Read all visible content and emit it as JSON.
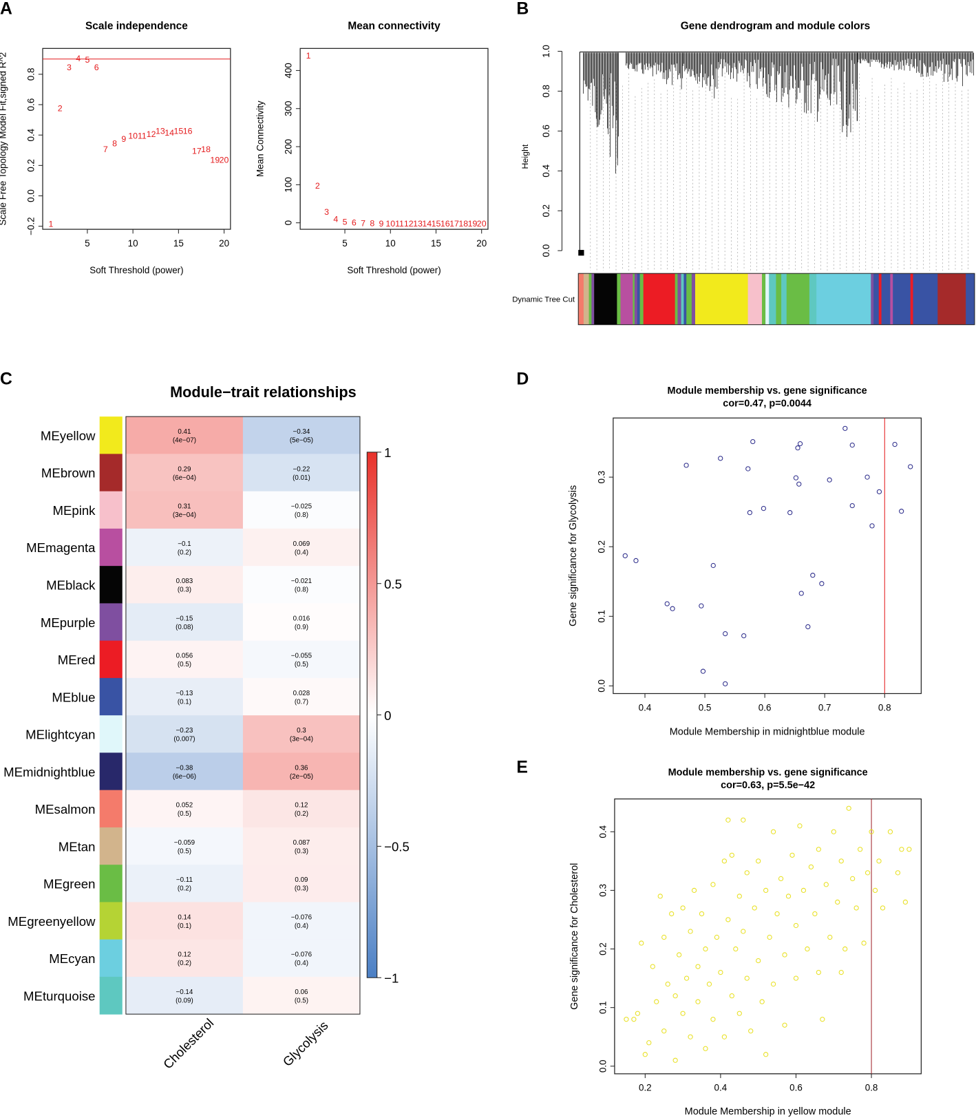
{
  "panel_labels": [
    "A",
    "B",
    "C",
    "D",
    "E"
  ],
  "chart_data": [
    {
      "id": "scale-independence",
      "type": "scatter",
      "title": "Scale independence",
      "xlabel": "Soft Threshold (power)",
      "ylabel": "Scale Free Topology Model Fit,signed R^2",
      "xlim": [
        0.1,
        20.7
      ],
      "ylim": [
        -0.22,
        0.97
      ],
      "xticks": [
        5,
        10,
        15,
        20
      ],
      "yticks": [
        -0.2,
        0.0,
        0.2,
        0.4,
        0.6,
        0.8
      ],
      "hline": 0.9,
      "point_labels": [
        "1",
        "2",
        "3",
        "4",
        "5",
        "6",
        "7",
        "8",
        "9",
        "10",
        "11",
        "12",
        "13",
        "14",
        "15",
        "16",
        "17",
        "18",
        "19",
        "20"
      ],
      "x": [
        1,
        2,
        3,
        4,
        5,
        6,
        7,
        8,
        9,
        10,
        11,
        12,
        13,
        14,
        15,
        16,
        17,
        18,
        19,
        20
      ],
      "y": [
        -0.18,
        0.58,
        0.85,
        0.91,
        0.9,
        0.85,
        0.31,
        0.35,
        0.38,
        0.4,
        0.4,
        0.41,
        0.43,
        0.42,
        0.43,
        0.43,
        0.3,
        0.31,
        0.24,
        0.24
      ],
      "color": "#e41a1c"
    },
    {
      "id": "mean-connectivity",
      "type": "scatter",
      "title": "Mean connectivity",
      "xlabel": "Soft Threshold (power)",
      "ylabel": "Mean Connectivity",
      "xlim": [
        0.1,
        20.7
      ],
      "ylim": [
        -17,
        458
      ],
      "xticks": [
        5,
        10,
        15,
        20
      ],
      "yticks": [
        0,
        100,
        200,
        300,
        400
      ],
      "point_labels": [
        "1",
        "2",
        "3",
        "4",
        "5",
        "6",
        "7",
        "8",
        "9",
        "10",
        "11",
        "12",
        "13",
        "14",
        "15",
        "16",
        "17",
        "18",
        "19",
        "20"
      ],
      "x": [
        1,
        2,
        3,
        4,
        5,
        6,
        7,
        8,
        9,
        10,
        11,
        12,
        13,
        14,
        15,
        16,
        17,
        18,
        19,
        20
      ],
      "y": [
        441,
        99,
        30,
        11,
        4,
        2,
        1,
        1,
        0,
        0,
        0,
        0,
        0,
        0,
        0,
        0,
        0,
        0,
        0,
        0
      ],
      "color": "#e41a1c"
    },
    {
      "id": "gene-dendrogram",
      "type": "dendrogram",
      "title": "Gene dendrogram and module colors",
      "ylabel": "Height",
      "yticks": [
        0.0,
        0.2,
        0.4,
        0.6,
        0.8,
        1.0
      ],
      "colorbar_label": "Dynamic Tree Cut"
    },
    {
      "id": "module-trait",
      "type": "heatmap",
      "title": "Module−trait relationships",
      "columns": [
        "Cholesterol",
        "Glycolysis"
      ],
      "rows": [
        {
          "name": "MEyellow",
          "color": "#f2ea1c",
          "values": [
            0.41,
            -0.34
          ],
          "p": [
            "(4e−07)",
            "(5e−05)"
          ],
          "labels": [
            "0.41",
            "−0.34"
          ]
        },
        {
          "name": "MEbrown",
          "color": "#a52a2a",
          "values": [
            0.29,
            -0.22
          ],
          "p": [
            "(6e−04)",
            "(0.01)"
          ],
          "labels": [
            "0.29",
            "−0.22"
          ]
        },
        {
          "name": "MEpink",
          "color": "#f7c0cb",
          "values": [
            0.31,
            -0.025
          ],
          "p": [
            "(3e−04)",
            "(0.8)"
          ],
          "labels": [
            "0.31",
            "−0.025"
          ]
        },
        {
          "name": "MEmagenta",
          "color": "#b84fa0",
          "values": [
            -0.1,
            0.069
          ],
          "p": [
            "(0.2)",
            "(0.4)"
          ],
          "labels": [
            "−0.1",
            "0.069"
          ]
        },
        {
          "name": "MEblack",
          "color": "#050505",
          "values": [
            0.083,
            -0.021
          ],
          "p": [
            "(0.3)",
            "(0.8)"
          ],
          "labels": [
            "0.083",
            "−0.021"
          ]
        },
        {
          "name": "MEpurple",
          "color": "#7f4fa0",
          "values": [
            -0.15,
            0.016
          ],
          "p": [
            "(0.08)",
            "(0.9)"
          ],
          "labels": [
            "−0.15",
            "0.016"
          ]
        },
        {
          "name": "MEred",
          "color": "#ec1c24",
          "values": [
            0.056,
            -0.055
          ],
          "p": [
            "(0.5)",
            "(0.5)"
          ],
          "labels": [
            "0.056",
            "−0.055"
          ]
        },
        {
          "name": "MEblue",
          "color": "#3953a4",
          "values": [
            -0.13,
            0.028
          ],
          "p": [
            "(0.1)",
            "(0.7)"
          ],
          "labels": [
            "−0.13",
            "0.028"
          ]
        },
        {
          "name": "MElightcyan",
          "color": "#e0f7fa",
          "values": [
            -0.23,
            0.3
          ],
          "p": [
            "(0.007)",
            "(3e−04)"
          ],
          "labels": [
            "−0.23",
            "0.3"
          ]
        },
        {
          "name": "MEmidnightblue",
          "color": "#28286a",
          "values": [
            -0.38,
            0.36
          ],
          "p": [
            "(6e−06)",
            "(2e−05)"
          ],
          "labels": [
            "−0.38",
            "0.36"
          ]
        },
        {
          "name": "MEsalmon",
          "color": "#f47b6b",
          "values": [
            0.052,
            0.12
          ],
          "p": [
            "(0.5)",
            "(0.2)"
          ],
          "labels": [
            "0.052",
            "0.12"
          ]
        },
        {
          "name": "MEtan",
          "color": "#d2b48c",
          "values": [
            -0.059,
            0.087
          ],
          "p": [
            "(0.5)",
            "(0.3)"
          ],
          "labels": [
            "−0.059",
            "0.087"
          ]
        },
        {
          "name": "MEgreen",
          "color": "#6abd45",
          "values": [
            -0.11,
            0.09
          ],
          "p": [
            "(0.2)",
            "(0.3)"
          ],
          "labels": [
            "−0.11",
            "0.09"
          ]
        },
        {
          "name": "MEgreenyellow",
          "color": "#b5d334",
          "values": [
            0.14,
            -0.076
          ],
          "p": [
            "(0.1)",
            "(0.4)"
          ],
          "labels": [
            "0.14",
            "−0.076"
          ]
        },
        {
          "name": "MEcyan",
          "color": "#6ccfe0",
          "values": [
            0.12,
            -0.076
          ],
          "p": [
            "(0.2)",
            "(0.4)"
          ],
          "labels": [
            "0.12",
            "−0.076"
          ]
        },
        {
          "name": "MEturquoise",
          "color": "#5ec8c0",
          "values": [
            -0.14,
            0.06
          ],
          "p": [
            "(0.09)",
            "(0.5)"
          ],
          "labels": [
            "−0.14",
            "0.06"
          ]
        }
      ],
      "legend_ticks": [
        {
          "value": 1,
          "label": "1"
        },
        {
          "value": 0.5,
          "label": "0.5"
        },
        {
          "value": 0,
          "label": "0"
        },
        {
          "value": -0.5,
          "label": "−0.5"
        },
        {
          "value": -1,
          "label": "−1"
        }
      ],
      "colors": {
        "low": "#4b7fc4",
        "mid": "#ffffff",
        "high": "#e8312a"
      }
    },
    {
      "id": "mm-gs-midnightblue",
      "type": "scatter",
      "title": "Module membership vs. gene significance",
      "subtitle": "cor=0.47, p=0.0044",
      "xlabel": "Module Membership in midnightblue module",
      "ylabel": "Gene significance for  Glycolysis",
      "xlim": [
        0.347,
        0.861
      ],
      "ylim": [
        -0.011,
        0.385
      ],
      "xticks": [
        0.4,
        0.5,
        0.6,
        0.7,
        0.8
      ],
      "yticks": [
        0.0,
        0.1,
        0.2,
        0.3
      ],
      "vline": 0.8,
      "color": "#2b2b8a",
      "points": [
        [
          0.367,
          0.187
        ],
        [
          0.385,
          0.18
        ],
        [
          0.469,
          0.317
        ],
        [
          0.437,
          0.118
        ],
        [
          0.446,
          0.111
        ],
        [
          0.494,
          0.115
        ],
        [
          0.514,
          0.173
        ],
        [
          0.526,
          0.327
        ],
        [
          0.58,
          0.351
        ],
        [
          0.572,
          0.312
        ],
        [
          0.575,
          0.249
        ],
        [
          0.598,
          0.255
        ],
        [
          0.534,
          0.075
        ],
        [
          0.565,
          0.072
        ],
        [
          0.497,
          0.021
        ],
        [
          0.534,
          0.003
        ],
        [
          0.642,
          0.249
        ],
        [
          0.652,
          0.299
        ],
        [
          0.657,
          0.29
        ],
        [
          0.655,
          0.342
        ],
        [
          0.659,
          0.348
        ],
        [
          0.661,
          0.133
        ],
        [
          0.68,
          0.159
        ],
        [
          0.672,
          0.085
        ],
        [
          0.695,
          0.147
        ],
        [
          0.708,
          0.296
        ],
        [
          0.734,
          0.37
        ],
        [
          0.746,
          0.346
        ],
        [
          0.746,
          0.259
        ],
        [
          0.771,
          0.3
        ],
        [
          0.779,
          0.23
        ],
        [
          0.791,
          0.279
        ],
        [
          0.817,
          0.347
        ],
        [
          0.828,
          0.251
        ],
        [
          0.843,
          0.315
        ]
      ]
    },
    {
      "id": "mm-gs-yellow",
      "type": "scatter",
      "title": "Module membership vs. gene significance",
      "subtitle": "cor=0.63, p=5.5e−42",
      "xlabel": "Module Membership in yellow module",
      "ylabel": "Gene significance for  Cholesterol",
      "xlim": [
        0.119,
        0.932
      ],
      "ylim": [
        -0.013,
        0.456
      ],
      "xticks": [
        0.2,
        0.4,
        0.6,
        0.8
      ],
      "yticks": [
        0.0,
        0.1,
        0.2,
        0.3,
        0.4
      ],
      "vline": 0.8,
      "color": "#e8e020",
      "points": [
        [
          0.15,
          0.08
        ],
        [
          0.17,
          0.08
        ],
        [
          0.18,
          0.09
        ],
        [
          0.19,
          0.21
        ],
        [
          0.2,
          0.02
        ],
        [
          0.21,
          0.04
        ],
        [
          0.22,
          0.17
        ],
        [
          0.23,
          0.11
        ],
        [
          0.24,
          0.29
        ],
        [
          0.25,
          0.22
        ],
        [
          0.25,
          0.06
        ],
        [
          0.26,
          0.14
        ],
        [
          0.27,
          0.26
        ],
        [
          0.28,
          0.12
        ],
        [
          0.28,
          0.01
        ],
        [
          0.29,
          0.19
        ],
        [
          0.3,
          0.27
        ],
        [
          0.3,
          0.09
        ],
        [
          0.31,
          0.15
        ],
        [
          0.32,
          0.23
        ],
        [
          0.32,
          0.05
        ],
        [
          0.33,
          0.3
        ],
        [
          0.34,
          0.17
        ],
        [
          0.34,
          0.11
        ],
        [
          0.35,
          0.26
        ],
        [
          0.36,
          0.2
        ],
        [
          0.36,
          0.03
        ],
        [
          0.37,
          0.14
        ],
        [
          0.38,
          0.31
        ],
        [
          0.38,
          0.08
        ],
        [
          0.39,
          0.22
        ],
        [
          0.4,
          0.16
        ],
        [
          0.41,
          0.35
        ],
        [
          0.41,
          0.05
        ],
        [
          0.42,
          0.25
        ],
        [
          0.43,
          0.12
        ],
        [
          0.43,
          0.36
        ],
        [
          0.44,
          0.2
        ],
        [
          0.45,
          0.29
        ],
        [
          0.45,
          0.09
        ],
        [
          0.46,
          0.23
        ],
        [
          0.47,
          0.33
        ],
        [
          0.47,
          0.15
        ],
        [
          0.48,
          0.06
        ],
        [
          0.49,
          0.27
        ],
        [
          0.5,
          0.18
        ],
        [
          0.5,
          0.35
        ],
        [
          0.51,
          0.11
        ],
        [
          0.52,
          0.3
        ],
        [
          0.52,
          0.02
        ],
        [
          0.53,
          0.22
        ],
        [
          0.54,
          0.4
        ],
        [
          0.54,
          0.14
        ],
        [
          0.55,
          0.26
        ],
        [
          0.56,
          0.32
        ],
        [
          0.57,
          0.19
        ],
        [
          0.57,
          0.07
        ],
        [
          0.58,
          0.29
        ],
        [
          0.59,
          0.36
        ],
        [
          0.6,
          0.24
        ],
        [
          0.6,
          0.15
        ],
        [
          0.61,
          0.41
        ],
        [
          0.62,
          0.3
        ],
        [
          0.63,
          0.2
        ],
        [
          0.64,
          0.34
        ],
        [
          0.65,
          0.26
        ],
        [
          0.66,
          0.37
        ],
        [
          0.67,
          0.08
        ],
        [
          0.68,
          0.31
        ],
        [
          0.69,
          0.22
        ],
        [
          0.7,
          0.4
        ],
        [
          0.71,
          0.28
        ],
        [
          0.72,
          0.35
        ],
        [
          0.73,
          0.2
        ],
        [
          0.74,
          0.44
        ],
        [
          0.75,
          0.32
        ],
        [
          0.76,
          0.27
        ],
        [
          0.77,
          0.37
        ],
        [
          0.78,
          0.21
        ],
        [
          0.79,
          0.33
        ],
        [
          0.8,
          0.4
        ],
        [
          0.81,
          0.3
        ],
        [
          0.82,
          0.35
        ],
        [
          0.83,
          0.27
        ],
        [
          0.85,
          0.4
        ],
        [
          0.87,
          0.33
        ],
        [
          0.88,
          0.37
        ],
        [
          0.9,
          0.37
        ],
        [
          0.89,
          0.28
        ],
        [
          0.42,
          0.42
        ],
        [
          0.46,
          0.42
        ],
        [
          0.66,
          0.16
        ],
        [
          0.72,
          0.16
        ]
      ]
    }
  ]
}
